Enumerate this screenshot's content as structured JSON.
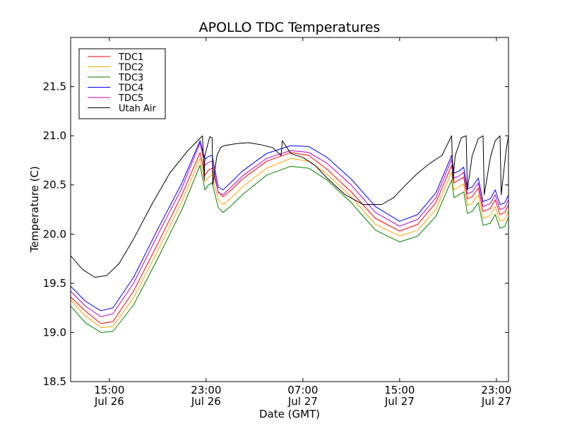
{
  "chart_data": {
    "type": "line",
    "title": "APOLLO TDC Temperatures",
    "xlabel": "Date (GMT)",
    "ylabel": "Temperature (C)",
    "x_units": "hours since 00:00 Jul 26 (GMT)",
    "xlim": [
      11.8,
      48.0
    ],
    "ylim": [
      18.5,
      22.0
    ],
    "yticks": [
      18.5,
      19.0,
      19.5,
      20.0,
      20.5,
      21.0,
      21.5
    ],
    "ytick_labels": [
      "18.5",
      "19.0",
      "19.5",
      "20.0",
      "20.5",
      "21.0",
      "21.5"
    ],
    "xticks": [
      {
        "x": 15,
        "line1": "15:00",
        "line2": "Jul 26"
      },
      {
        "x": 23,
        "line1": "23:00",
        "line2": "Jul 26"
      },
      {
        "x": 31,
        "line1": "07:00",
        "line2": "Jul 27"
      },
      {
        "x": 39,
        "line1": "15:00",
        "line2": "Jul 27"
      },
      {
        "x": 47,
        "line1": "23:00",
        "line2": "Jul 27"
      }
    ],
    "grid": false,
    "legend": {
      "position": "top-left",
      "frame": true
    },
    "series": [
      {
        "name": "TDC1",
        "color": "#ff0000",
        "x": [
          11.8,
          13.0,
          14.3,
          15.3,
          17.0,
          19.0,
          21.0,
          22.5,
          22.9,
          23.2,
          23.5,
          24.0,
          24.4,
          25.0,
          26.0,
          28.0,
          30.0,
          31.5,
          33.0,
          35.0,
          37.0,
          39.0,
          40.5,
          42.0,
          43.3,
          43.5,
          43.9,
          44.3,
          44.6,
          45.0,
          45.5,
          45.9,
          46.5,
          46.9,
          47.3,
          47.7,
          48.0
        ],
        "y": [
          19.36,
          19.22,
          19.09,
          19.11,
          19.42,
          19.9,
          20.4,
          20.83,
          20.6,
          20.65,
          20.67,
          20.43,
          20.38,
          20.44,
          20.56,
          20.74,
          20.83,
          20.8,
          20.66,
          20.43,
          20.16,
          20.03,
          20.1,
          20.32,
          20.7,
          20.52,
          20.55,
          20.58,
          20.36,
          20.38,
          20.47,
          20.23,
          20.26,
          20.35,
          20.2,
          20.22,
          20.3
        ]
      },
      {
        "name": "TDC2",
        "color": "#ffa500",
        "x": [
          11.8,
          13.0,
          14.3,
          15.3,
          17.0,
          19.0,
          21.0,
          22.5,
          22.9,
          23.2,
          23.5,
          24.0,
          24.4,
          25.0,
          26.0,
          28.0,
          30.0,
          31.5,
          33.0,
          35.0,
          37.0,
          39.0,
          40.5,
          42.0,
          43.3,
          43.5,
          43.9,
          44.3,
          44.6,
          45.0,
          45.5,
          45.9,
          46.5,
          46.9,
          47.3,
          47.7,
          48.0
        ],
        "y": [
          19.33,
          19.17,
          19.05,
          19.06,
          19.35,
          19.83,
          20.33,
          20.77,
          20.53,
          20.58,
          20.6,
          20.35,
          20.3,
          20.36,
          20.48,
          20.67,
          20.77,
          20.74,
          20.61,
          20.38,
          20.1,
          19.98,
          20.04,
          20.25,
          20.63,
          20.45,
          20.48,
          20.51,
          20.29,
          20.31,
          20.4,
          20.16,
          20.19,
          20.28,
          20.13,
          20.15,
          20.24
        ]
      },
      {
        "name": "TDC3",
        "color": "#008000",
        "x": [
          11.8,
          13.0,
          14.3,
          15.3,
          17.0,
          19.0,
          21.0,
          22.5,
          22.9,
          23.2,
          23.5,
          24.0,
          24.4,
          25.0,
          26.0,
          28.0,
          30.0,
          31.5,
          33.0,
          35.0,
          37.0,
          39.0,
          40.5,
          42.0,
          43.3,
          43.5,
          43.9,
          44.3,
          44.6,
          45.0,
          45.5,
          45.9,
          46.5,
          46.9,
          47.3,
          47.7,
          48.0
        ],
        "y": [
          19.27,
          19.1,
          19.0,
          19.01,
          19.28,
          19.75,
          20.25,
          20.7,
          20.45,
          20.5,
          20.52,
          20.27,
          20.22,
          20.28,
          20.4,
          20.6,
          20.69,
          20.67,
          20.55,
          20.32,
          20.04,
          19.92,
          19.98,
          20.18,
          20.55,
          20.37,
          20.4,
          20.43,
          20.21,
          20.23,
          20.32,
          20.09,
          20.11,
          20.2,
          20.06,
          20.08,
          20.17
        ]
      },
      {
        "name": "TDC4",
        "color": "#0000ff",
        "x": [
          11.8,
          13.0,
          14.3,
          15.3,
          17.0,
          19.0,
          21.0,
          22.5,
          22.9,
          23.2,
          23.5,
          24.0,
          24.4,
          25.0,
          26.0,
          28.0,
          30.0,
          31.5,
          33.0,
          35.0,
          37.0,
          39.0,
          40.5,
          42.0,
          43.3,
          43.5,
          43.9,
          44.3,
          44.6,
          45.0,
          45.5,
          45.9,
          46.5,
          46.9,
          47.3,
          47.7,
          48.0
        ],
        "y": [
          19.47,
          19.32,
          19.22,
          19.25,
          19.56,
          20.05,
          20.52,
          20.95,
          20.76,
          20.79,
          20.8,
          20.48,
          20.45,
          20.52,
          20.64,
          20.82,
          20.9,
          20.89,
          20.78,
          20.56,
          20.28,
          20.13,
          20.2,
          20.42,
          20.8,
          20.62,
          20.64,
          20.68,
          20.46,
          20.48,
          20.57,
          20.33,
          20.36,
          20.45,
          20.3,
          20.32,
          20.4
        ]
      },
      {
        "name": "TDC5",
        "color": "#bf00bf",
        "x": [
          11.8,
          13.0,
          14.3,
          15.3,
          17.0,
          19.0,
          21.0,
          22.5,
          22.9,
          23.2,
          23.5,
          24.0,
          24.4,
          25.0,
          26.0,
          28.0,
          30.0,
          31.5,
          33.0,
          35.0,
          37.0,
          39.0,
          40.5,
          42.0,
          43.3,
          43.5,
          43.9,
          44.3,
          44.6,
          45.0,
          45.5,
          45.9,
          46.5,
          46.9,
          47.3,
          47.7,
          48.0
        ],
        "y": [
          19.42,
          19.27,
          19.16,
          19.19,
          19.5,
          19.99,
          20.47,
          20.93,
          20.7,
          20.73,
          20.74,
          20.42,
          20.4,
          20.47,
          20.59,
          20.77,
          20.85,
          20.83,
          20.72,
          20.5,
          20.22,
          20.08,
          20.15,
          20.37,
          20.76,
          20.57,
          20.59,
          20.63,
          20.41,
          20.43,
          20.52,
          20.28,
          20.31,
          20.4,
          20.25,
          20.27,
          20.35
        ]
      },
      {
        "name": "Utah Air",
        "color": "#000000",
        "x": [
          11.8,
          12.8,
          13.8,
          14.8,
          15.8,
          17.0,
          18.5,
          20.0,
          21.5,
          22.7,
          22.85,
          22.9,
          23.3,
          23.5,
          23.55,
          23.9,
          24.2,
          24.5,
          25.5,
          26.5,
          27.5,
          28.5,
          29.2,
          29.3,
          30.0,
          31.0,
          32.0,
          33.0,
          34.5,
          36.0,
          37.5,
          38.5,
          39.5,
          40.5,
          41.5,
          42.5,
          43.3,
          43.4,
          43.6,
          44.1,
          44.5,
          44.6,
          45.0,
          45.5,
          45.9,
          46.0,
          46.5,
          46.9,
          47.3,
          47.4,
          47.8,
          48.0
        ],
        "y": [
          19.78,
          19.64,
          19.56,
          19.58,
          19.7,
          19.95,
          20.3,
          20.62,
          20.85,
          21.0,
          20.55,
          20.8,
          20.99,
          20.98,
          20.5,
          20.8,
          20.88,
          20.9,
          20.92,
          20.93,
          20.91,
          20.88,
          20.8,
          20.95,
          20.82,
          20.78,
          20.7,
          20.57,
          20.4,
          20.3,
          20.3,
          20.37,
          20.5,
          20.62,
          20.72,
          20.8,
          21.0,
          20.55,
          20.8,
          20.98,
          21.0,
          20.45,
          20.8,
          20.97,
          21.0,
          20.4,
          20.78,
          20.95,
          21.0,
          20.4,
          20.85,
          21.0
        ]
      }
    ]
  }
}
